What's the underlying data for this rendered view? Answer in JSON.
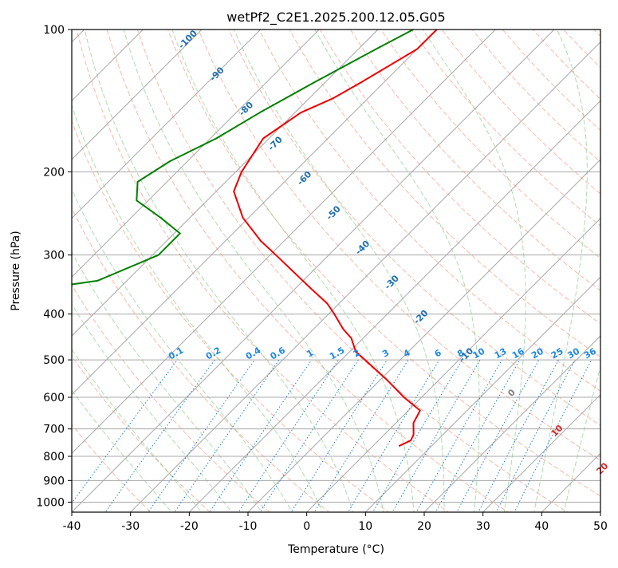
{
  "chart_data": {
    "type": "skew-t",
    "title": "wetPf2_C2E1.2025.200.12.05.G05",
    "xlabel": "Temperature (°C)",
    "ylabel": "Pressure (hPa)",
    "xlim": [
      -40,
      50
    ],
    "ylim_hpa": [
      1050,
      100
    ],
    "x_ticks": [
      "-40",
      "-30",
      "-20",
      "-10",
      "0",
      "10",
      "20",
      "30",
      "40",
      "50"
    ],
    "y_ticks": [
      "1000",
      "900",
      "800",
      "700",
      "600",
      "500",
      "400",
      "300",
      "200",
      "100"
    ],
    "pressure_gridlines_hpa": [
      1000,
      900,
      800,
      700,
      600,
      500,
      400,
      300,
      200,
      100
    ],
    "grid": true,
    "scale_y": "log",
    "temperature_profile": {
      "color": "#ee0000",
      "points": [
        {
          "p": 100,
          "t": -60
        },
        {
          "p": 110,
          "t": -60
        },
        {
          "p": 130,
          "t": -64
        },
        {
          "p": 140,
          "t": -66
        },
        {
          "p": 150,
          "t": -69
        },
        {
          "p": 170,
          "t": -71
        },
        {
          "p": 200,
          "t": -69
        },
        {
          "p": 220,
          "t": -67
        },
        {
          "p": 250,
          "t": -61
        },
        {
          "p": 280,
          "t": -54
        },
        {
          "p": 300,
          "t": -49
        },
        {
          "p": 350,
          "t": -38
        },
        {
          "p": 380,
          "t": -32
        },
        {
          "p": 400,
          "t": -29
        },
        {
          "p": 430,
          "t": -25
        },
        {
          "p": 450,
          "t": -22
        },
        {
          "p": 480,
          "t": -19
        },
        {
          "p": 500,
          "t": -16
        },
        {
          "p": 550,
          "t": -9
        },
        {
          "p": 600,
          "t": -3
        },
        {
          "p": 640,
          "t": 2
        },
        {
          "p": 680,
          "t": 3
        },
        {
          "p": 720,
          "t": 5
        },
        {
          "p": 740,
          "t": 5.5
        },
        {
          "p": 760,
          "t": 4.5
        }
      ]
    },
    "dewpoint_profile": {
      "color": "#008000",
      "points": [
        {
          "p": 100,
          "t": -64
        },
        {
          "p": 110,
          "t": -67
        },
        {
          "p": 130,
          "t": -72
        },
        {
          "p": 150,
          "t": -76
        },
        {
          "p": 170,
          "t": -79
        },
        {
          "p": 190,
          "t": -83
        },
        {
          "p": 210,
          "t": -85
        },
        {
          "p": 230,
          "t": -82
        },
        {
          "p": 250,
          "t": -75
        },
        {
          "p": 270,
          "t": -69
        },
        {
          "p": 300,
          "t": -69
        },
        {
          "p": 340,
          "t": -75
        },
        {
          "p": 360,
          "t": -87
        },
        {
          "p": 370,
          "t": -94
        },
        {
          "p": 390,
          "t": -97
        },
        {
          "p": 410,
          "t": -101
        },
        {
          "p": 440,
          "t": -103
        },
        {
          "p": 455,
          "t": -99
        },
        {
          "p": 470,
          "t": -102
        },
        {
          "p": 485,
          "t": -98
        },
        {
          "p": 505,
          "t": -102
        },
        {
          "p": 525,
          "t": -103
        },
        {
          "p": 555,
          "t": -89
        },
        {
          "p": 585,
          "t": -94
        },
        {
          "p": 610,
          "t": -87
        },
        {
          "p": 625,
          "t": -104
        },
        {
          "p": 670,
          "t": -106
        },
        {
          "p": 700,
          "t": -86
        },
        {
          "p": 740,
          "t": -106
        },
        {
          "p": 760,
          "t": -85
        }
      ]
    },
    "mixing_ratio_labels_gkg": [
      "0.1",
      "0.2",
      "0.4",
      "0.6",
      "1",
      "1.5",
      "2",
      "3",
      "4",
      "6",
      "8",
      "10",
      "13",
      "16",
      "20",
      "25",
      "30",
      "36"
    ],
    "mixing_ratio_label_pressure_hpa": 500,
    "dry_adiabat_labels_c": [
      "-100",
      "-90",
      "-80",
      "-70",
      "-60",
      "-50",
      "-40",
      "-30",
      "-20",
      "-10",
      "0",
      "10",
      "20",
      "30",
      "40"
    ],
    "colors": {
      "temperature": "#ee0000",
      "dewpoint": "#008000",
      "dry_adiabat": "#f08060",
      "moist_adiabat": "#6cbf6c",
      "mixing_ratio": "#1e7fd8",
      "isotherm": "#a8a8a8",
      "label_cold": "#1f6fb0",
      "label_zero": "#808080",
      "label_warm": "#d62728",
      "mixing_label": "#1e88e5"
    }
  }
}
